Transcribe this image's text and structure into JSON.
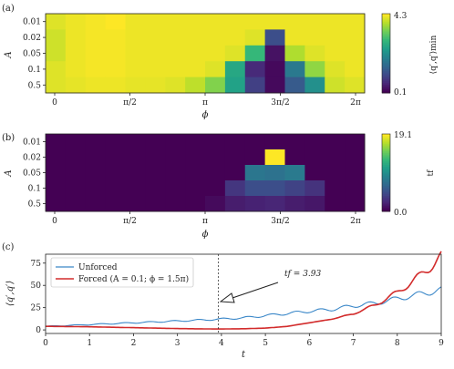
{
  "chart_data": [
    {
      "type": "heatmap",
      "panel_label": "(a)",
      "xlabel": "ϕ",
      "ylabel": "A",
      "x_ticks": [
        "0",
        "π/2",
        "π",
        "3π/2",
        "2π"
      ],
      "y_ticks": [
        "0.01",
        "0.02",
        "0.05",
        "0.1",
        "0.5"
      ],
      "colorbar_label": "⟨q′,q′⟩min",
      "colorbar_ticks": [
        "4.3",
        "0.1"
      ],
      "colormap": "viridis",
      "vmin": 0.1,
      "vmax": 4.3,
      "rows": 5,
      "cols": 16,
      "values": [
        [
          4.1,
          4.2,
          4.25,
          4.3,
          4.2,
          4.2,
          4.2,
          4.2,
          4.2,
          4.2,
          4.2,
          4.2,
          4.2,
          4.2,
          4.2,
          4.2
        ],
        [
          4.0,
          4.2,
          4.25,
          4.25,
          4.2,
          4.2,
          4.2,
          4.2,
          4.2,
          4.2,
          4.1,
          1.1,
          4.2,
          4.2,
          4.2,
          4.2
        ],
        [
          4.0,
          4.2,
          4.25,
          4.25,
          4.2,
          4.2,
          4.2,
          4.2,
          4.2,
          4.1,
          2.9,
          0.3,
          3.8,
          4.1,
          4.2,
          4.2
        ],
        [
          4.1,
          4.2,
          4.25,
          4.25,
          4.2,
          4.2,
          4.2,
          4.2,
          4.1,
          2.6,
          0.6,
          0.2,
          1.8,
          3.6,
          4.1,
          4.2
        ],
        [
          4.1,
          4.15,
          4.2,
          4.2,
          4.15,
          4.15,
          4.1,
          3.9,
          3.5,
          2.5,
          0.9,
          0.2,
          1.3,
          2.2,
          4.0,
          4.1
        ]
      ]
    },
    {
      "type": "heatmap",
      "panel_label": "(b)",
      "xlabel": "ϕ",
      "ylabel": "A",
      "x_ticks": [
        "0",
        "π/2",
        "π",
        "3π/2",
        "2π"
      ],
      "y_ticks": [
        "0.01",
        "0.02",
        "0.05",
        "0.1",
        "0.5"
      ],
      "colorbar_label": "tf",
      "colorbar_ticks": [
        "19.1",
        "0.0"
      ],
      "colormap": "viridis",
      "vmin": 0.0,
      "vmax": 19.1,
      "rows": 5,
      "cols": 16,
      "values": [
        [
          0,
          0,
          0,
          0,
          0,
          0,
          0,
          0,
          0,
          0,
          0,
          0,
          0,
          0,
          0,
          0
        ],
        [
          0,
          0,
          0,
          0,
          0,
          0,
          0,
          0,
          0,
          0,
          0,
          19.1,
          0,
          0,
          0,
          0
        ],
        [
          0,
          0,
          0,
          0,
          0,
          0,
          0,
          0,
          0,
          0,
          7.5,
          7.2,
          7.8,
          0,
          0,
          0
        ],
        [
          0,
          0,
          0,
          0,
          0,
          0,
          0,
          0,
          0,
          3.0,
          4.5,
          4.5,
          3.8,
          2.8,
          0,
          0
        ],
        [
          0,
          0,
          0,
          0,
          0,
          0,
          0,
          0,
          0.5,
          1.5,
          1.8,
          2.0,
          1.5,
          1.2,
          0,
          0
        ]
      ]
    },
    {
      "type": "line",
      "panel_label": "(c)",
      "xlabel": "t",
      "ylabel": "⟨q′,q′⟩",
      "xlim": [
        0,
        9
      ],
      "ylim": [
        -4,
        85
      ],
      "x_ticks": [
        0,
        1,
        2,
        3,
        4,
        5,
        6,
        7,
        8,
        9
      ],
      "y_ticks": [
        0,
        25,
        50,
        75
      ],
      "legend_position": "upper-left",
      "annotation": {
        "text": "tf = 3.93",
        "x": 3.93
      },
      "series": [
        {
          "name": "Unforced",
          "color": "#3a87c8",
          "x": [
            0,
            0.5,
            1,
            1.5,
            2,
            2.5,
            3,
            3.5,
            3.93,
            4.5,
            5,
            5.5,
            6,
            6.5,
            7,
            7.5,
            8,
            8.5,
            9
          ],
          "y": [
            4,
            5,
            6,
            7,
            8,
            9,
            10,
            11,
            12,
            13.5,
            16,
            18.5,
            21,
            23,
            27,
            30,
            35,
            40,
            45
          ]
        },
        {
          "name": "Forced (A = 0.1; ϕ = 1.5π)",
          "color": "#d22b2b",
          "x": [
            0,
            0.5,
            1,
            1.5,
            2,
            2.5,
            3,
            3.5,
            3.93,
            4.5,
            5,
            5.5,
            6,
            6.5,
            7,
            7.5,
            8,
            8.5,
            9
          ],
          "y": [
            4,
            3.8,
            3.5,
            3,
            2.5,
            2,
            1.5,
            1.2,
            1,
            1.3,
            2,
            4,
            8,
            12,
            18,
            28,
            42,
            60,
            82
          ]
        }
      ]
    }
  ]
}
